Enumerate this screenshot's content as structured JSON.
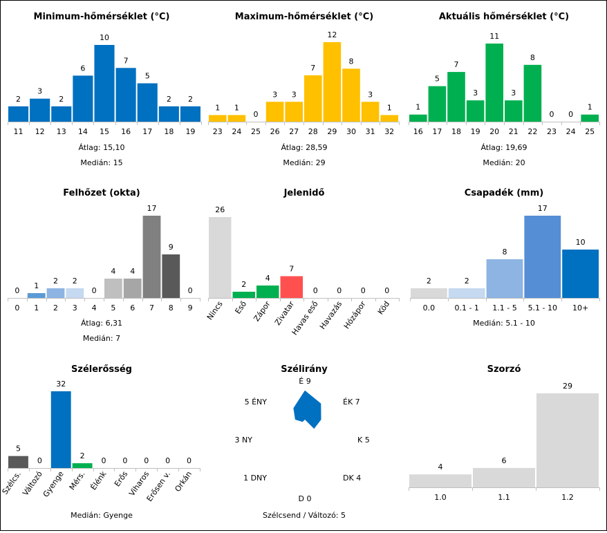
{
  "chart_data": [
    {
      "id": "min",
      "type": "bar",
      "title": "Minimum-hőmérséklet (°C)",
      "categories": [
        "11",
        "12",
        "13",
        "14",
        "15",
        "16",
        "17",
        "18",
        "19"
      ],
      "values": [
        2,
        3,
        2,
        6,
        10,
        7,
        5,
        2,
        2
      ],
      "colors": [
        "#0070c0"
      ],
      "stats": [
        "Átlag: 15,10",
        "Medián: 15"
      ]
    },
    {
      "id": "max",
      "type": "bar",
      "title": "Maximum-hőmérséklet (°C)",
      "categories": [
        "23",
        "24",
        "25",
        "26",
        "27",
        "28",
        "29",
        "30",
        "31",
        "32"
      ],
      "values": [
        1,
        1,
        0,
        3,
        3,
        7,
        12,
        8,
        3,
        1
      ],
      "colors": [
        "#ffc000"
      ],
      "stats": [
        "Átlag: 28,59",
        "Medián: 29"
      ]
    },
    {
      "id": "act",
      "type": "bar",
      "title": "Aktuális hőmérséklet (°C)",
      "categories": [
        "16",
        "17",
        "18",
        "19",
        "20",
        "21",
        "22",
        "23",
        "24",
        "25"
      ],
      "values": [
        1,
        5,
        7,
        3,
        11,
        3,
        8,
        0,
        0,
        1
      ],
      "colors": [
        "#00b050"
      ],
      "stats": [
        "Átlag: 19,69",
        "Medián: 20"
      ]
    },
    {
      "id": "cloud",
      "type": "bar",
      "title": "Felhőzet (okta)",
      "categories": [
        "0",
        "1",
        "2",
        "3",
        "4",
        "5",
        "6",
        "7",
        "8",
        "9"
      ],
      "values": [
        0,
        1,
        2,
        2,
        0,
        4,
        4,
        17,
        9,
        0
      ],
      "colors": [
        "#5b9bd5",
        "#5b9bd5",
        "#8db4e2",
        "#c5d9f1",
        "#d9d9d9",
        "#bfbfbf",
        "#a6a6a6",
        "#808080",
        "#595959",
        "#404040"
      ],
      "stats": [
        "Átlag: 6,31",
        "Medián: 7"
      ]
    },
    {
      "id": "wx",
      "type": "bar",
      "title": "Jelenidő",
      "categories": [
        "Nincs",
        "Eső",
        "Zápor",
        "Zivatar",
        "Havas eső",
        "Havazás",
        "Hózápor",
        "Köd"
      ],
      "values": [
        26,
        2,
        4,
        7,
        0,
        0,
        0,
        0
      ],
      "colors": [
        "#d9d9d9",
        "#00b050",
        "#00b050",
        "#ff5050",
        "#bfbfbf",
        "#bfbfbf",
        "#bfbfbf",
        "#bfbfbf"
      ],
      "stats": []
    },
    {
      "id": "precip",
      "type": "bar",
      "title": "Csapadék (mm)",
      "categories": [
        "0.0",
        "0.1 - 1",
        "1.1 - 5",
        "5.1 - 10",
        "10+"
      ],
      "values": [
        2,
        2,
        8,
        17,
        10
      ],
      "colors": [
        "#d9d9d9",
        "#c5d9f1",
        "#8db4e2",
        "#558ed5",
        "#0070c0"
      ],
      "stats": [
        "Medián: 5.1 - 10"
      ]
    },
    {
      "id": "wind",
      "type": "bar",
      "title": "Szélerősség",
      "categories": [
        "Szélcs.",
        "Változó",
        "Gyenge",
        "Mérs.",
        "Élénk",
        "Erős",
        "Viharos",
        "Erősen v.",
        "Orkán"
      ],
      "values": [
        5,
        0,
        32,
        2,
        0,
        0,
        0,
        0,
        0
      ],
      "colors": [
        "#595959",
        "#595959",
        "#0070c0",
        "#00b050",
        "#bfbfbf",
        "#bfbfbf",
        "#bfbfbf",
        "#bfbfbf",
        "#bfbfbf"
      ],
      "stats": [
        "Medián: Gyenge"
      ]
    },
    {
      "id": "dir",
      "type": "radar",
      "title": "Szélirány",
      "axes": [
        {
          "label": "É",
          "value": 9
        },
        {
          "label": "ÉK",
          "value": 7
        },
        {
          "label": "K",
          "value": 5
        },
        {
          "label": "DK",
          "value": 4
        },
        {
          "label": "D",
          "value": 0
        },
        {
          "label": "DNY",
          "value": 1
        },
        {
          "label": "NY",
          "value": 3
        },
        {
          "label": "ÉNY",
          "value": 5
        }
      ],
      "color": "#0070c0",
      "stats": [
        "Szélcsend / Változó: 5"
      ]
    },
    {
      "id": "mult",
      "type": "bar",
      "title": "Szorzó",
      "categories": [
        "1.0",
        "1.1",
        "1.2"
      ],
      "values": [
        4,
        6,
        29
      ],
      "colors": [
        "#d9d9d9"
      ],
      "stats": []
    }
  ]
}
